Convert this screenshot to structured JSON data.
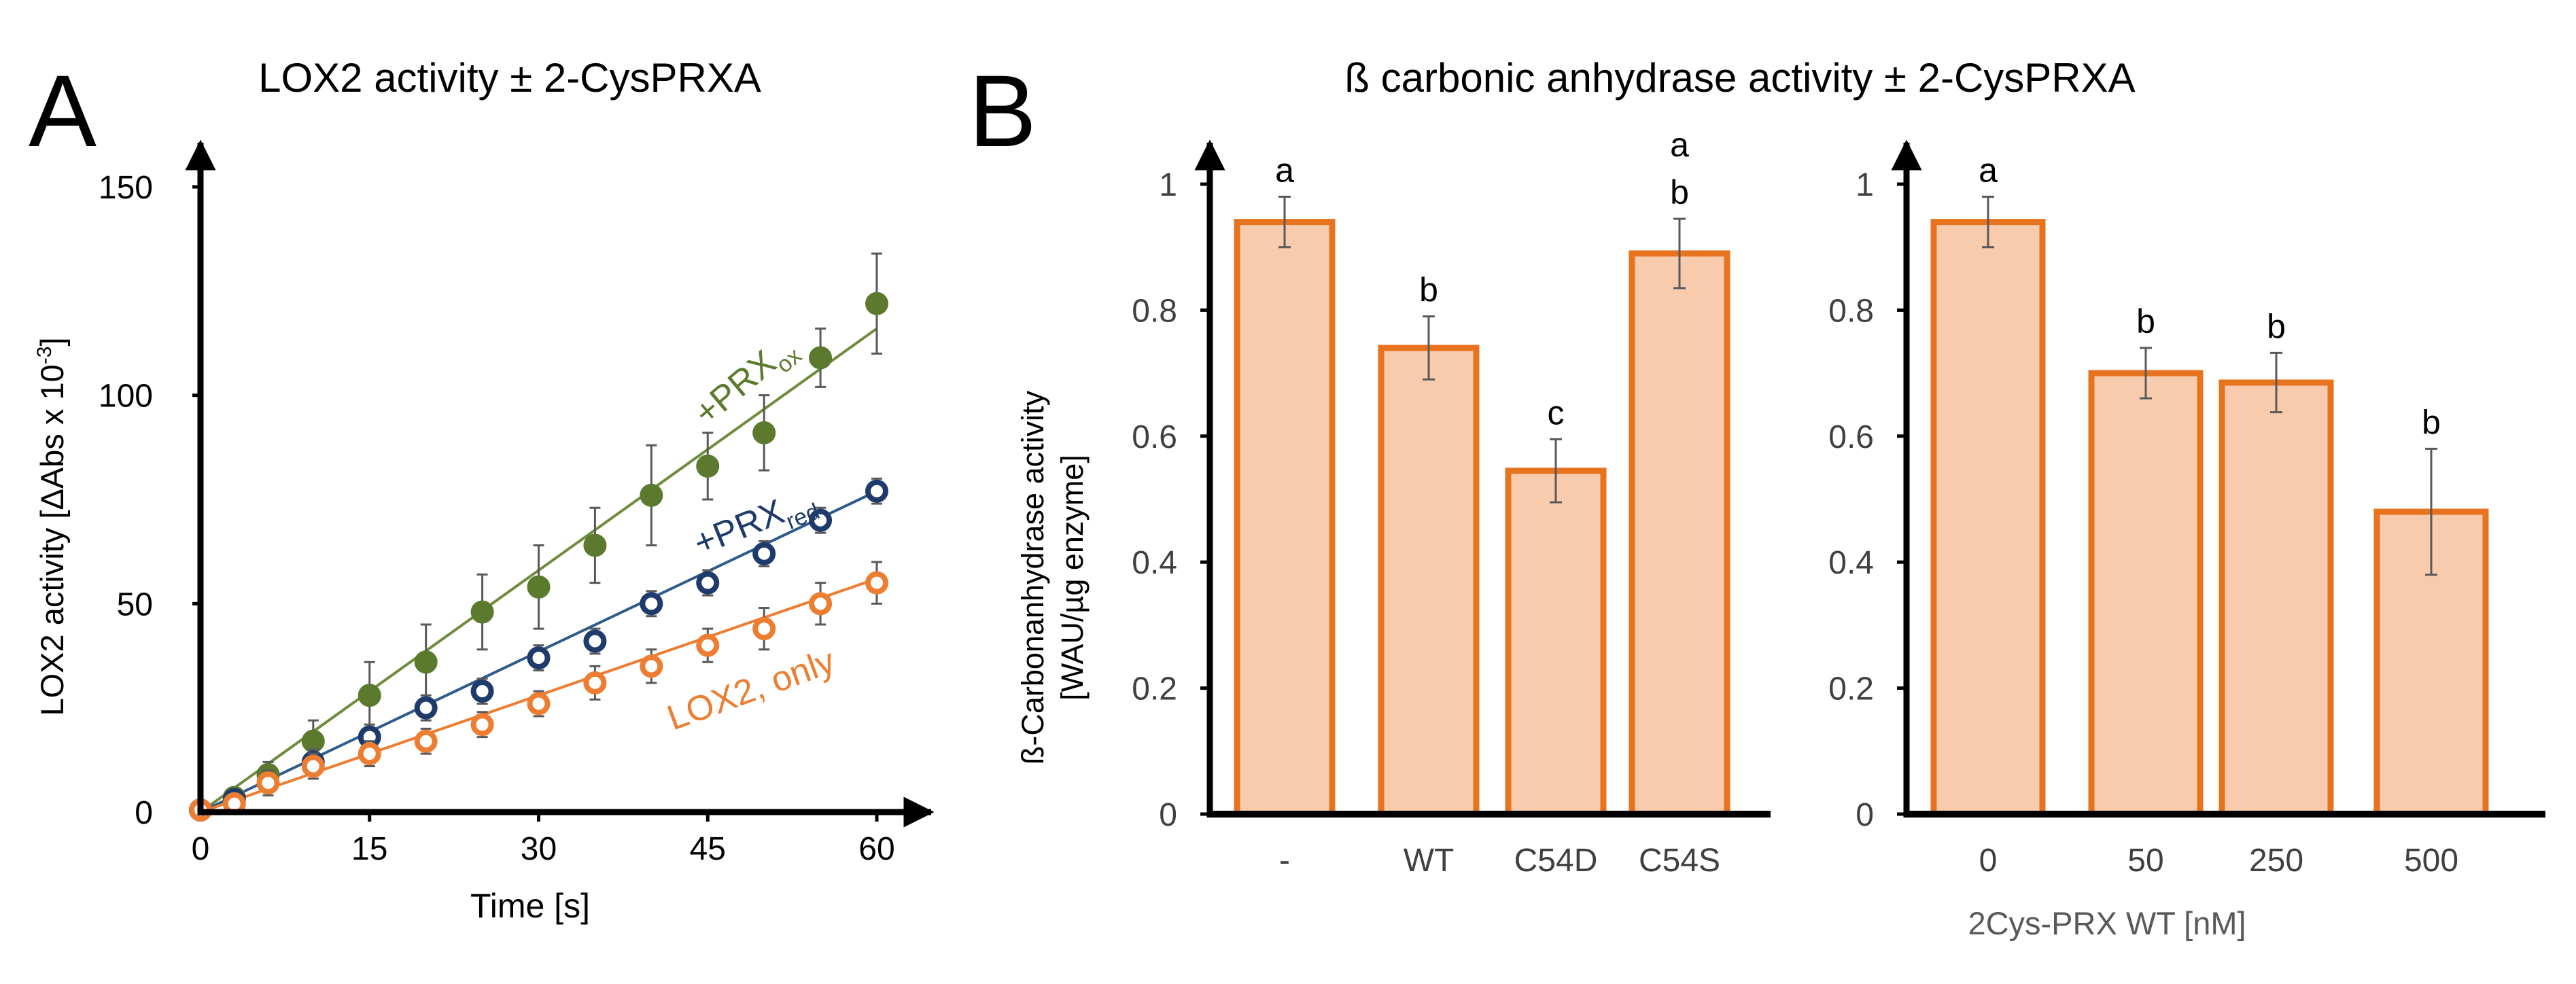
{
  "colors": {
    "axis": "#000000",
    "green": "#5b7a2e",
    "green_line": "#6e8c3c",
    "blue": "#1f3b6b",
    "blue_line": "#2e5a8c",
    "orange": "#ed7d31",
    "bar_fill": "#f8cbad",
    "bar_stroke": "#e8731f",
    "error_bar": "#595959",
    "secondary_text": "#595959"
  },
  "chart_data": [
    {
      "panel": "A",
      "type": "scatter",
      "title": "LOX2 activity ± 2-CysPRXA",
      "xlabel": "Time [s]",
      "ylabel": "LOX2 activity [ΔAbs x 10",
      "ylabel_sup": "-3",
      "ylabel_end": "]",
      "xlim": [
        0,
        60
      ],
      "ylim": [
        0,
        150
      ],
      "xticks": [
        0,
        15,
        30,
        45,
        60
      ],
      "yticks": [
        0,
        50,
        100,
        150
      ],
      "series": [
        {
          "name": "+PRX",
          "subscript": "ox",
          "color_key": "green",
          "filled": true,
          "x": [
            0,
            3,
            6,
            10,
            15,
            20,
            25,
            30,
            35,
            40,
            45,
            50,
            55,
            60
          ],
          "y": [
            0.5,
            3.5,
            9,
            17,
            28,
            36,
            48,
            54,
            64,
            76,
            83,
            91,
            109,
            122
          ],
          "err": [
            1,
            2,
            3,
            5,
            8,
            9,
            9,
            10,
            9,
            12,
            8,
            9,
            7,
            12
          ],
          "fit": [
            0,
            0,
            60,
            116
          ]
        },
        {
          "name": "+PRX",
          "subscript": "red",
          "color_key": "blue",
          "filled": false,
          "x": [
            0,
            3,
            10,
            15,
            20,
            25,
            30,
            35,
            40,
            45,
            50,
            55,
            60
          ],
          "y": [
            0.5,
            3,
            12,
            18,
            25,
            29,
            37,
            41,
            50,
            55,
            62,
            70,
            77
          ],
          "err": [
            1,
            2,
            3,
            3,
            3,
            3,
            3,
            3,
            3,
            3,
            3,
            3,
            3
          ],
          "fit": [
            0,
            0,
            60,
            77
          ]
        },
        {
          "name": "LOX2, only",
          "subscript": "",
          "color_key": "orange",
          "filled": false,
          "x": [
            0,
            3,
            6,
            10,
            15,
            20,
            25,
            30,
            35,
            40,
            45,
            50,
            55,
            60
          ],
          "y": [
            0.5,
            2,
            7,
            11,
            14,
            17,
            21,
            26,
            31,
            35,
            40,
            44,
            50,
            55
          ],
          "err": [
            1,
            2,
            3,
            3,
            3,
            3,
            3,
            3,
            4,
            4,
            4,
            5,
            5,
            5
          ],
          "fit": [
            0,
            0,
            60,
            56
          ]
        }
      ]
    },
    {
      "panel": "B",
      "type": "bar",
      "title": "ß carbonic anhydrase activity ± 2-CysPRXA",
      "ylabel_line1": "ß-Carbonanhydrase activity",
      "ylabel_line2": "[WAU/µg enzyme]",
      "ylim": [
        0,
        1
      ],
      "yticks": [
        "0",
        "0.2",
        "0.4",
        "0.6",
        "0.8",
        "1"
      ],
      "subplots": [
        {
          "xlabel": "",
          "categories": [
            "-",
            "WT",
            "C54D",
            "C54S"
          ],
          "values": [
            0.94,
            0.74,
            0.545,
            0.89
          ],
          "errors": [
            0.04,
            0.05,
            0.05,
            0.055
          ],
          "letters": [
            [
              "a"
            ],
            [
              "b"
            ],
            [
              "c"
            ],
            [
              "b",
              "a"
            ]
          ]
        },
        {
          "xlabel": "2Cys-PRX WT [nM]",
          "categories": [
            "0",
            "50",
            "250",
            "500"
          ],
          "values": [
            0.94,
            0.7,
            0.685,
            0.48
          ],
          "errors": [
            0.04,
            0.04,
            0.047,
            0.1
          ],
          "letters": [
            [
              "a"
            ],
            [
              "b"
            ],
            [
              "b"
            ],
            [
              "b"
            ]
          ]
        }
      ]
    }
  ],
  "panel_letters": [
    "A",
    "B"
  ]
}
